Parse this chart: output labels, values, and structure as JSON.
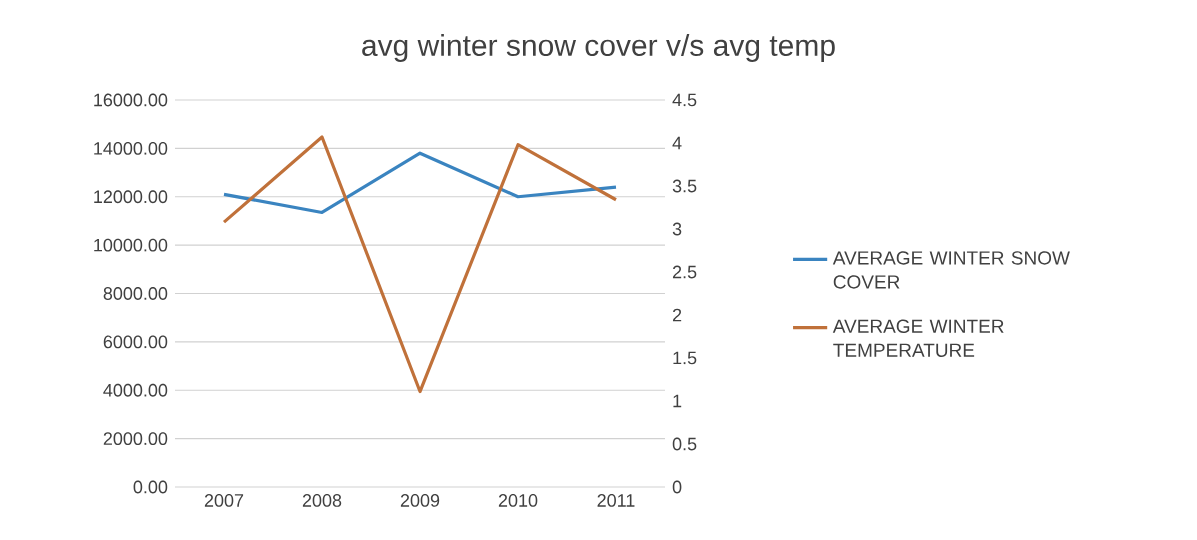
{
  "chart_data": {
    "type": "line",
    "title": "avg winter snow cover v/s avg temp",
    "categories": [
      "2007",
      "2008",
      "2009",
      "2010",
      "2011"
    ],
    "series": [
      {
        "name": "AVERAGE WINTER SNOW COVER",
        "color": "#3a84c0",
        "values": [
          12100,
          11350,
          13800,
          12000,
          12400
        ]
      },
      {
        "name": "AVERAGE WINTER TEMPERATURE",
        "color": "#c0713a",
        "axis": "y2",
        "values": [
          3.08,
          4.07,
          1.11,
          3.98,
          3.34
        ]
      }
    ],
    "ylim": [
      0,
      16000
    ],
    "yticks": [
      {
        "value": 0,
        "label": "0.00"
      },
      {
        "value": 2000,
        "label": "2000.00"
      },
      {
        "value": 4000,
        "label": "4000.00"
      },
      {
        "value": 6000,
        "label": "6000.00"
      },
      {
        "value": 8000,
        "label": "8000.00"
      },
      {
        "value": 10000,
        "label": "10000.00"
      },
      {
        "value": 12000,
        "label": "12000.00"
      },
      {
        "value": 14000,
        "label": "14000.00"
      },
      {
        "value": 16000,
        "label": "16000.00"
      }
    ],
    "y2lim": [
      0,
      4.5
    ],
    "y2ticks": [
      0,
      0.5,
      1,
      1.5,
      2,
      2.5,
      3,
      3.5,
      4,
      4.5
    ],
    "grid": "y",
    "legend": "right",
    "marker": "none"
  }
}
